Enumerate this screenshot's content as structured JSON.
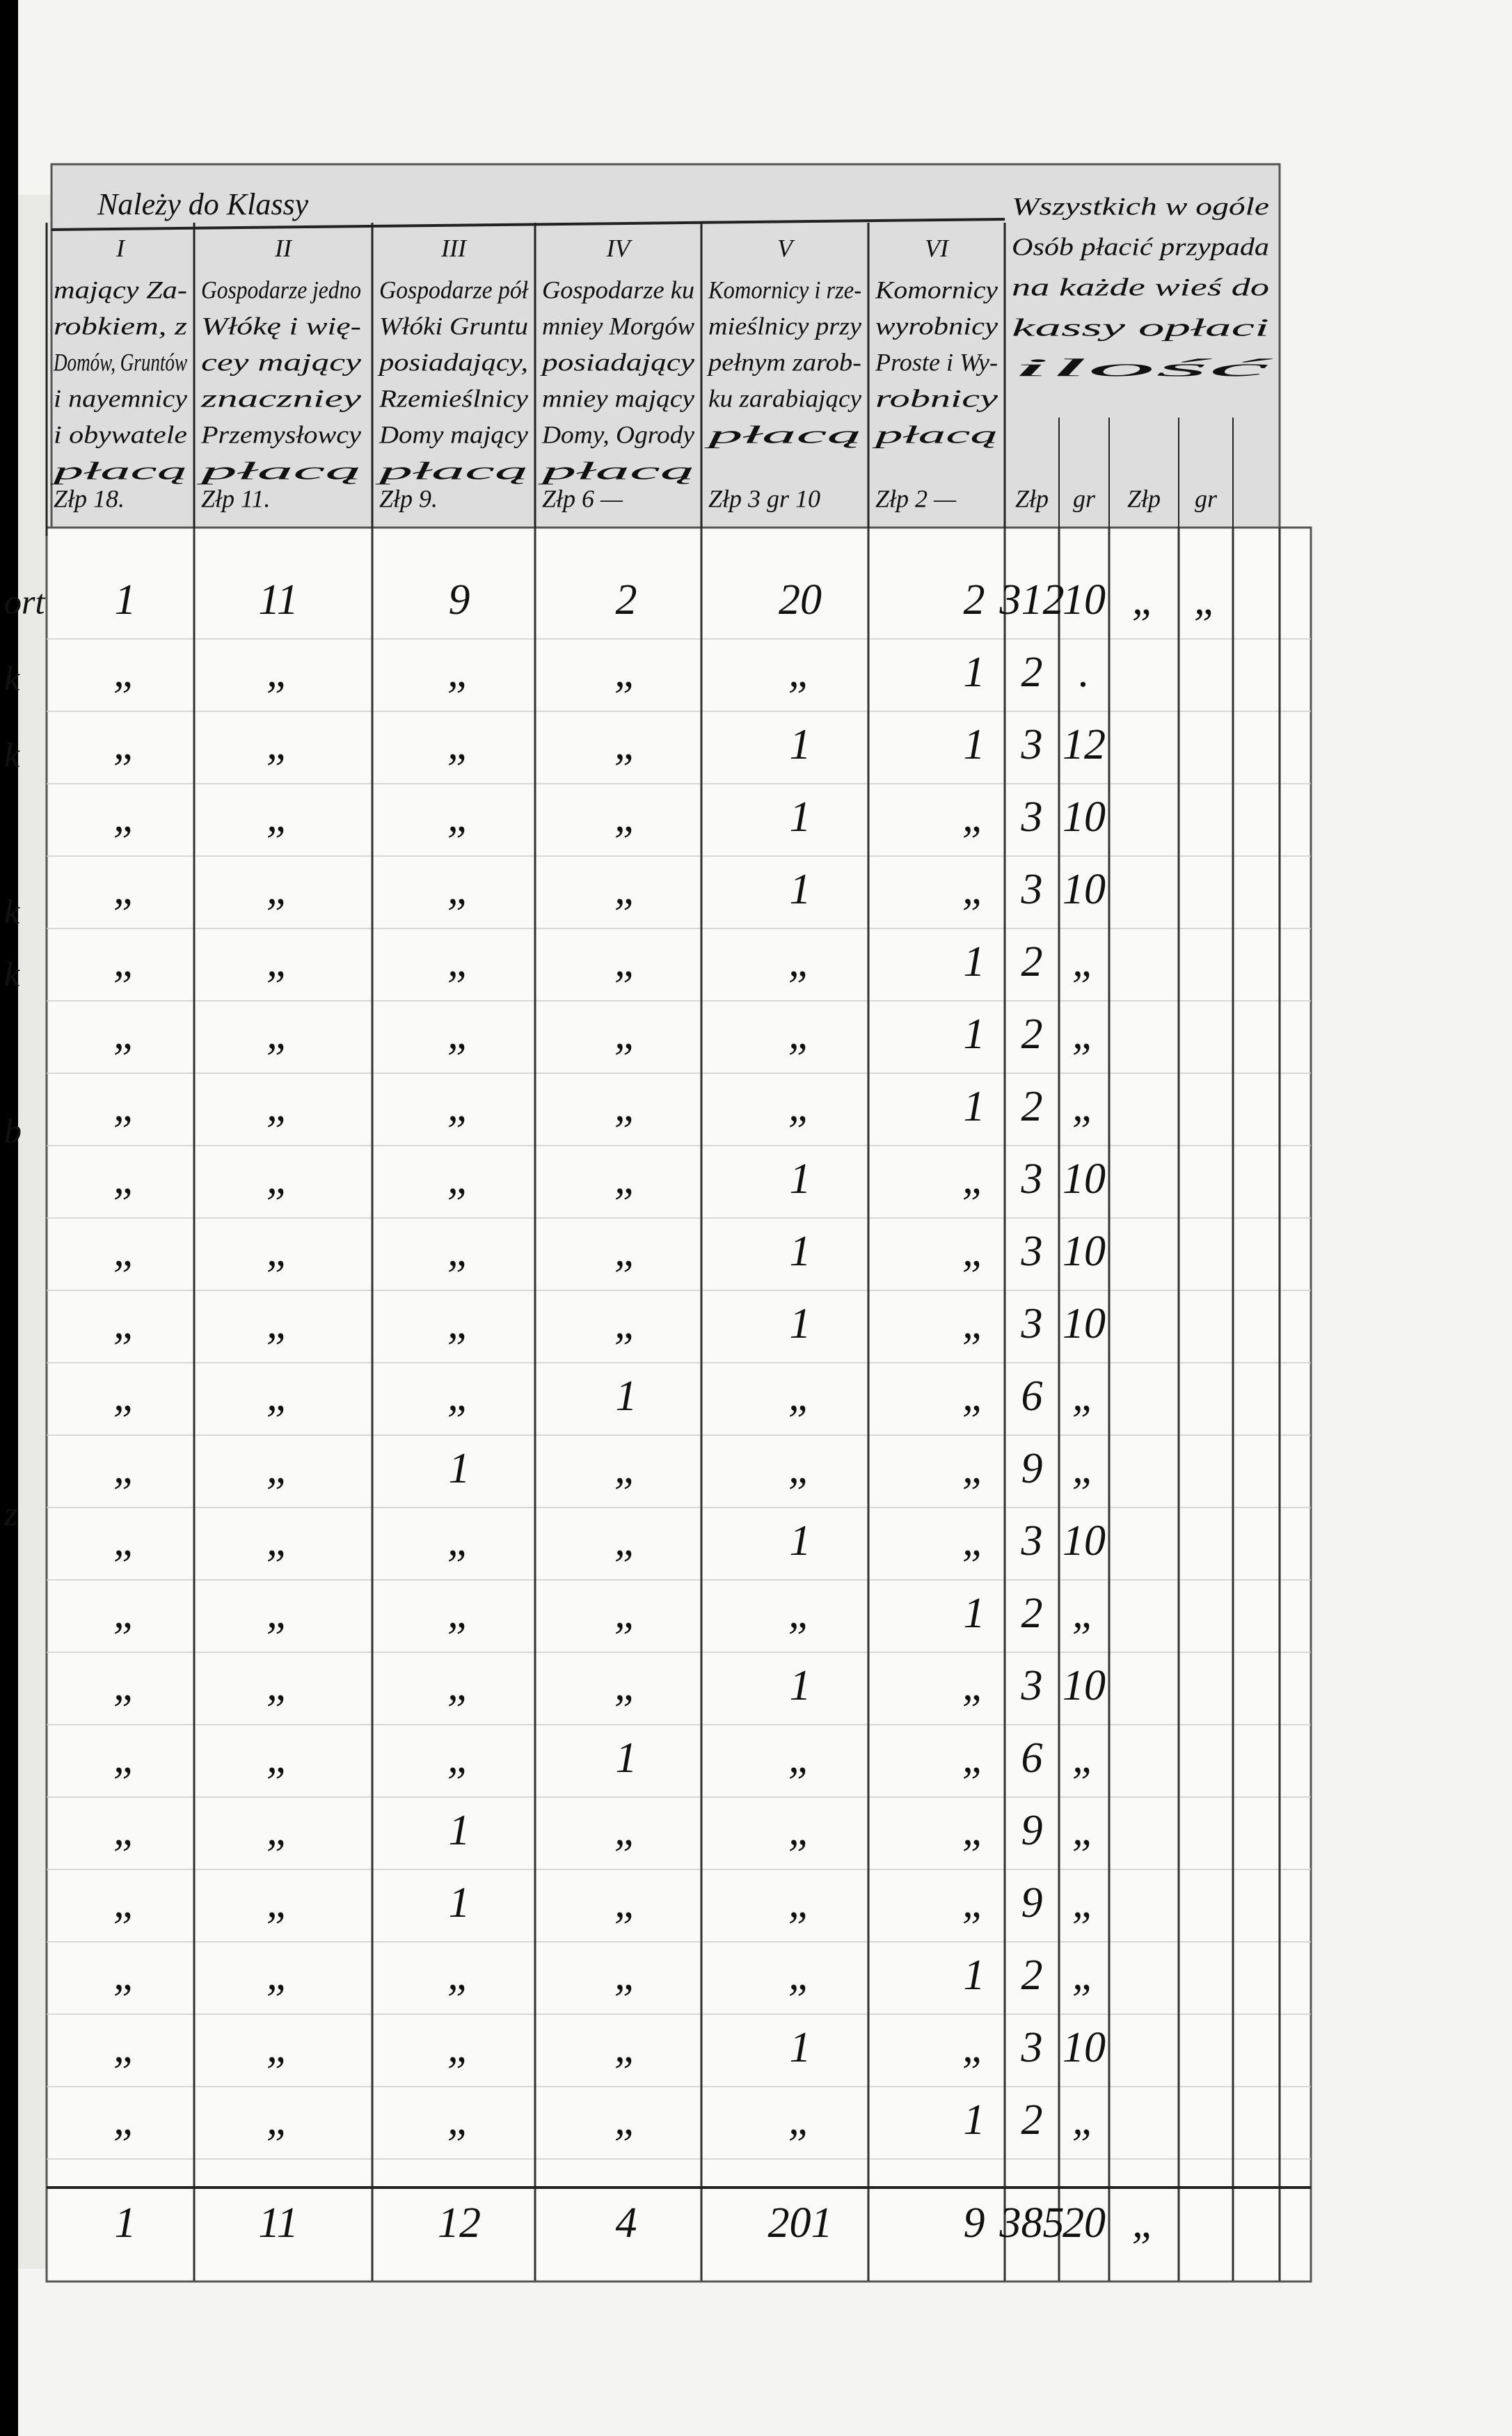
{
  "header": {
    "title": "Należy do Klassy",
    "columns": [
      {
        "number": "I",
        "lines": [
          "mający Za-",
          "robkiem, z",
          "Domów, Gruntów",
          "i nayemnicy",
          "i obywatele",
          "płacą"
        ],
        "rate": "Złp 18."
      },
      {
        "number": "II",
        "lines": [
          "Gospodarze jedno",
          "Włókę i wię-",
          "cey mający",
          "znaczniey",
          "Przemysłowcy",
          "płacą"
        ],
        "rate": "Złp 11."
      },
      {
        "number": "III",
        "lines": [
          "Gospodarze pół",
          "Włóki Gruntu",
          "posiadający,",
          "Rzemieślnicy",
          "Domy mający",
          "płacą"
        ],
        "rate": "Złp 9."
      },
      {
        "number": "IV",
        "lines": [
          "Gospodarze ku",
          "mniey Morgów",
          "posiadający",
          "mniey mający",
          "Domy, Ogrody",
          "płacą"
        ],
        "rate": "Złp 6 —"
      },
      {
        "number": "V",
        "lines": [
          "Komornicy i rze-",
          "mieślnicy przy",
          "pełnym zarob-",
          "ku zarabiający",
          "płacą"
        ],
        "rate": "Złp 3 gr 10"
      },
      {
        "number": "VI",
        "lines": [
          "Komornicy",
          "wyrobnicy",
          "Proste i Wy-",
          "robnicy",
          "płacą"
        ],
        "rate": "Złp 2 —"
      }
    ],
    "summary": {
      "lines": [
        "Wszystkich w ogóle",
        "Osób płacić przypada",
        "na każde wieś do",
        "kassy opłaci",
        "ilość"
      ],
      "units": [
        "Złp",
        "gr",
        "Złp",
        "gr"
      ]
    }
  },
  "left_margin": [
    "ort",
    "k",
    "k",
    "k",
    "k",
    "b",
    "z"
  ],
  "table": {
    "rows": [
      [
        "1",
        "11",
        "9",
        "2",
        "20",
        "2",
        "312",
        "10",
        "„",
        "„"
      ],
      [
        "„",
        "„",
        "„",
        "„",
        "„",
        "1",
        "2",
        "."
      ],
      [
        "„",
        "„",
        "„",
        "„",
        "1",
        "1",
        "3",
        "12"
      ],
      [
        "„",
        "„",
        "„",
        "„",
        "1",
        "„",
        "3",
        "10"
      ],
      [
        "„",
        "„",
        "„",
        "„",
        "1",
        "„",
        "3",
        "10"
      ],
      [
        "„",
        "„",
        "„",
        "„",
        "„",
        "1",
        "2",
        "„"
      ],
      [
        "„",
        "„",
        "„",
        "„",
        "„",
        "1",
        "2",
        "„"
      ],
      [
        "„",
        "„",
        "„",
        "„",
        "„",
        "1",
        "2",
        "„"
      ],
      [
        "„",
        "„",
        "„",
        "„",
        "1",
        "„",
        "3",
        "10"
      ],
      [
        "„",
        "„",
        "„",
        "„",
        "1",
        "„",
        "3",
        "10"
      ],
      [
        "„",
        "„",
        "„",
        "„",
        "1",
        "„",
        "3",
        "10"
      ],
      [
        "„",
        "„",
        "„",
        "1",
        "„",
        "„",
        "6",
        "„"
      ],
      [
        "„",
        "„",
        "1",
        "„",
        "„",
        "„",
        "9",
        "„"
      ],
      [
        "„",
        "„",
        "„",
        "„",
        "1",
        "„",
        "3",
        "10"
      ],
      [
        "„",
        "„",
        "„",
        "„",
        "„",
        "1",
        "2",
        "„"
      ],
      [
        "„",
        "„",
        "„",
        "„",
        "1",
        "„",
        "3",
        "10"
      ],
      [
        "„",
        "„",
        "„",
        "1",
        "„",
        "„",
        "6",
        "„"
      ],
      [
        "„",
        "„",
        "1",
        "„",
        "„",
        "„",
        "9",
        "„"
      ],
      [
        "„",
        "„",
        "1",
        "„",
        "„",
        "„",
        "9",
        "„"
      ],
      [
        "„",
        "„",
        "„",
        "„",
        "„",
        "1",
        "2",
        "„"
      ],
      [
        "„",
        "„",
        "„",
        "„",
        "1",
        "„",
        "3",
        "10"
      ],
      [
        "„",
        "„",
        "„",
        "„",
        "„",
        "1",
        "2",
        "„"
      ]
    ],
    "total": [
      "1",
      "11",
      "12",
      "4",
      "201",
      "9",
      "385",
      "20",
      "„"
    ]
  }
}
